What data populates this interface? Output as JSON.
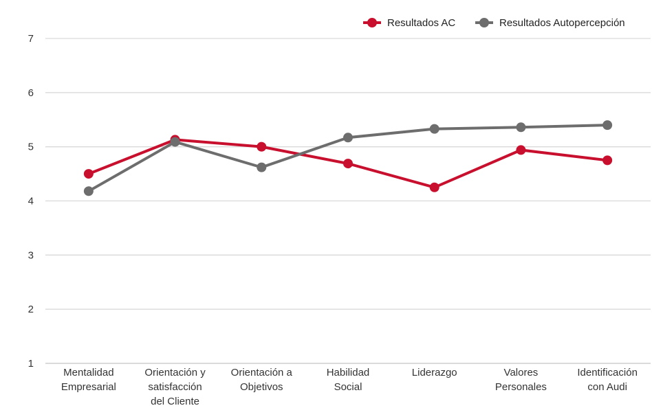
{
  "chart_data": {
    "type": "line",
    "categories": [
      [
        "Mentalidad",
        "Empresarial"
      ],
      [
        "Orientación y",
        "satisfacción",
        "del Cliente"
      ],
      [
        "Orientación a",
        "Objetivos"
      ],
      [
        "Habilidad",
        "Social"
      ],
      [
        "Liderazgo"
      ],
      [
        "Valores",
        "Personales"
      ],
      [
        "Identificación",
        "con Audi"
      ]
    ],
    "series": [
      {
        "name": "Resultados AC",
        "color": "#c8102e",
        "values": [
          4.5,
          5.13,
          5.0,
          4.69,
          4.25,
          4.94,
          4.75
        ]
      },
      {
        "name": "Resultados Autopercepción",
        "color": "#6d6d6d",
        "values": [
          4.18,
          5.09,
          4.62,
          5.17,
          5.33,
          5.36,
          5.4
        ]
      }
    ],
    "ylim": [
      1,
      7
    ],
    "yticks": [
      1,
      2,
      3,
      4,
      5,
      6,
      7
    ],
    "grid": true,
    "legend_position": "top-right",
    "title": "",
    "xlabel": "",
    "ylabel": ""
  }
}
